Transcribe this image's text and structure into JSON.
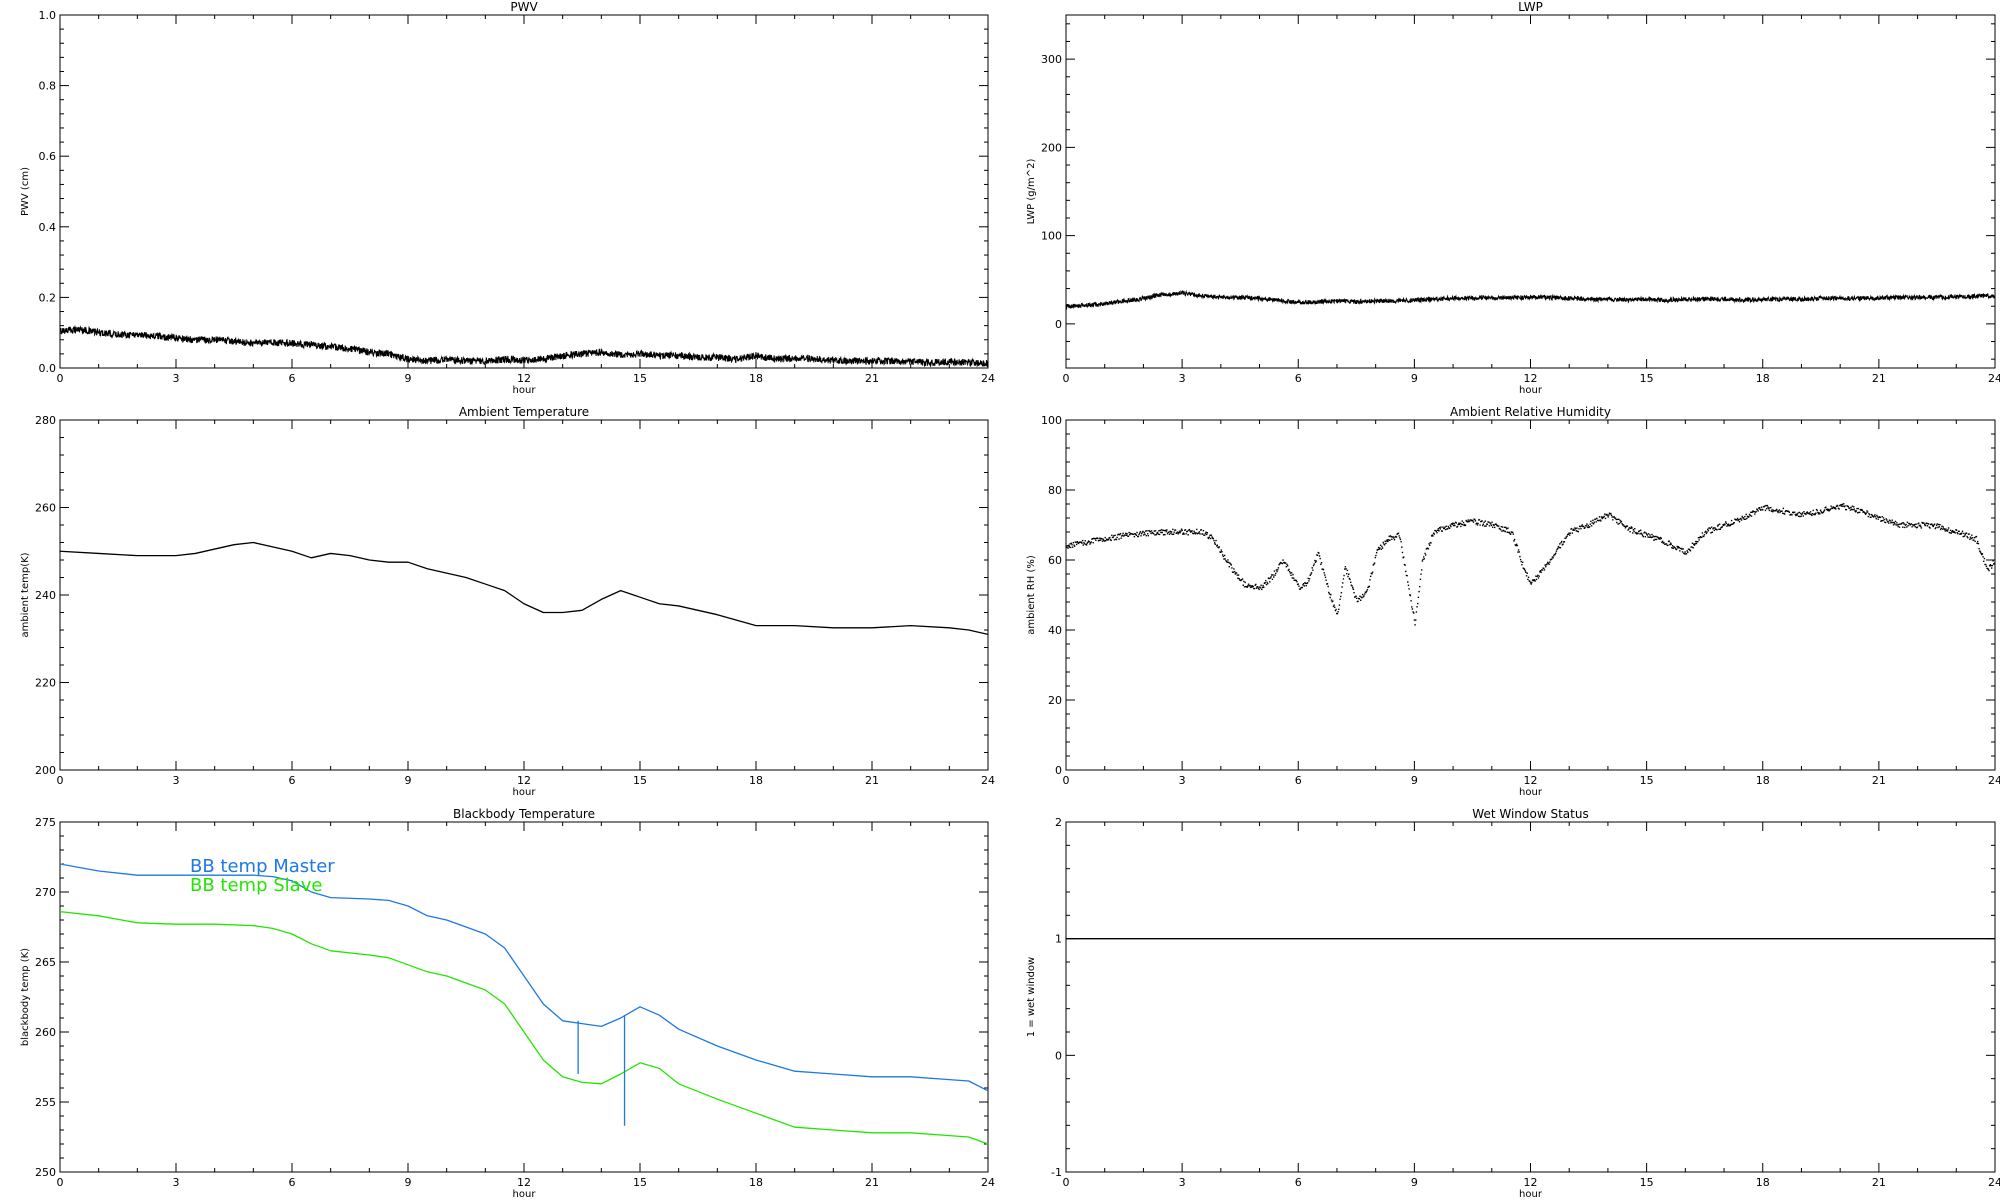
{
  "page": {
    "background": "#ffffff",
    "axis_color": "#000000"
  },
  "chart_data": [
    {
      "id": "pwv",
      "type": "line",
      "title": "PWV",
      "xlabel": "hour",
      "ylabel": "PWV (cm)",
      "xlim": [
        0,
        24
      ],
      "ylim": [
        0,
        1
      ],
      "xticks": [
        0,
        3,
        6,
        9,
        12,
        15,
        18,
        21,
        24
      ],
      "yticks": [
        0,
        0.2,
        0.4,
        0.6,
        0.8,
        1
      ],
      "ytick_labels": [
        "0.0",
        "0.2",
        "0.4",
        "0.6",
        "0.8",
        "1.0"
      ],
      "grid": false,
      "series": [
        {
          "color": "#000000",
          "style": "noisy",
          "noise": 0.01,
          "x": [
            0,
            0.5,
            1,
            1.5,
            2,
            2.5,
            3,
            3.5,
            4,
            4.5,
            5,
            5.5,
            6,
            6.5,
            7,
            7.5,
            8,
            8.5,
            9,
            9.5,
            10,
            10.5,
            11,
            11.5,
            12,
            12.5,
            13,
            13.5,
            14,
            14.5,
            15,
            15.5,
            16,
            16.5,
            17,
            17.5,
            18,
            18.5,
            19,
            19.5,
            20,
            20.5,
            21,
            21.5,
            22,
            22.5,
            23,
            23.5,
            24
          ],
          "y": [
            0.105,
            0.11,
            0.1,
            0.095,
            0.095,
            0.09,
            0.085,
            0.08,
            0.08,
            0.075,
            0.07,
            0.072,
            0.07,
            0.065,
            0.06,
            0.055,
            0.045,
            0.04,
            0.025,
            0.02,
            0.025,
            0.02,
            0.02,
            0.025,
            0.022,
            0.025,
            0.035,
            0.04,
            0.045,
            0.038,
            0.04,
            0.035,
            0.035,
            0.03,
            0.03,
            0.025,
            0.035,
            0.025,
            0.028,
            0.025,
            0.022,
            0.02,
            0.02,
            0.02,
            0.018,
            0.015,
            0.018,
            0.015,
            0.012
          ]
        }
      ]
    },
    {
      "id": "lwp",
      "type": "line",
      "title": "LWP",
      "xlabel": "hour",
      "ylabel": "LWP (g/m^2)",
      "xlim": [
        0,
        24
      ],
      "ylim": [
        -50,
        350
      ],
      "xticks": [
        0,
        3,
        6,
        9,
        12,
        15,
        18,
        21,
        24
      ],
      "yticks": [
        0,
        100,
        200,
        300
      ],
      "ytick_labels": [
        "0",
        "100",
        "200",
        "300"
      ],
      "grid": false,
      "series": [
        {
          "color": "#000000",
          "style": "noisy",
          "noise": 2.5,
          "x": [
            0,
            0.5,
            1,
            1.5,
            2,
            2.5,
            3,
            3.5,
            4,
            4.5,
            5,
            5.5,
            6,
            6.5,
            7,
            7.5,
            8,
            8.5,
            9,
            9.5,
            10,
            10.5,
            11,
            11.5,
            12,
            12.5,
            13,
            13.5,
            14,
            14.5,
            15,
            15.5,
            16,
            16.5,
            17,
            17.5,
            18,
            18.5,
            19,
            19.5,
            20,
            20.5,
            21,
            21.5,
            22,
            22.5,
            23,
            23.5,
            24
          ],
          "y": [
            20,
            21,
            23,
            26,
            29,
            33,
            35,
            32,
            30,
            30,
            29,
            27,
            24,
            25,
            26,
            25,
            26,
            26,
            27,
            28,
            29,
            29,
            30,
            30,
            30,
            30,
            29,
            28,
            28,
            27,
            28,
            27,
            28,
            28,
            28,
            27,
            28,
            28,
            28,
            29,
            29,
            29,
            29,
            30,
            30,
            30,
            31,
            31,
            32
          ]
        }
      ]
    },
    {
      "id": "ambient_temperature",
      "type": "line",
      "title": "Ambient Temperature",
      "xlabel": "hour",
      "ylabel": "ambient temp(K)",
      "xlim": [
        0,
        24
      ],
      "ylim": [
        200,
        280
      ],
      "xticks": [
        0,
        3,
        6,
        9,
        12,
        15,
        18,
        21,
        24
      ],
      "yticks": [
        200,
        220,
        240,
        260,
        280
      ],
      "ytick_labels": [
        "200",
        "220",
        "240",
        "260",
        "280"
      ],
      "grid": false,
      "series": [
        {
          "color": "#000000",
          "style": "line",
          "x": [
            0,
            1,
            2,
            3,
            3.5,
            4,
            4.5,
            5,
            5.5,
            6,
            6.5,
            7,
            7.5,
            8,
            8.5,
            9,
            9.5,
            10,
            10.5,
            11,
            11.5,
            12,
            12.5,
            13,
            13.5,
            14,
            14.5,
            15,
            15.5,
            16,
            17,
            18,
            19,
            20,
            21,
            22,
            23,
            23.5,
            24
          ],
          "y": [
            250,
            249.5,
            249,
            249,
            249.5,
            250.5,
            251.5,
            252,
            251,
            250,
            248.5,
            249.5,
            249,
            248,
            247.5,
            247.5,
            246,
            245,
            244,
            242.5,
            241,
            238,
            236,
            236,
            236.5,
            239,
            241,
            239.5,
            238,
            237.5,
            235.5,
            233,
            233,
            232.5,
            232.5,
            233,
            232.5,
            232,
            231
          ]
        }
      ]
    },
    {
      "id": "ambient_relative_humidity",
      "type": "scatter",
      "title": "Ambient Relative Humidity",
      "xlabel": "hour",
      "ylabel": "ambient RH (%)",
      "xlim": [
        0,
        24
      ],
      "ylim": [
        0,
        100
      ],
      "xticks": [
        0,
        3,
        6,
        9,
        12,
        15,
        18,
        21,
        24
      ],
      "yticks": [
        0,
        20,
        40,
        60,
        80,
        100
      ],
      "ytick_labels": [
        "0",
        "20",
        "40",
        "60",
        "80",
        "100"
      ],
      "grid": false,
      "series": [
        {
          "color": "#000000",
          "style": "dots",
          "x": [
            0,
            0.5,
            1,
            1.5,
            2,
            2.5,
            3,
            3.5,
            3.8,
            4,
            4.3,
            4.6,
            5,
            5.3,
            5.6,
            6,
            6.2,
            6.5,
            6.8,
            7,
            7.2,
            7.5,
            7.8,
            8,
            8.3,
            8.6,
            9,
            9.2,
            9.5,
            10,
            10.5,
            11,
            11.5,
            11.8,
            12,
            12.5,
            13,
            13.5,
            14,
            14.5,
            15,
            15.5,
            16,
            16.5,
            17,
            17.5,
            18,
            18.5,
            19,
            19.5,
            20,
            20.5,
            21,
            21.5,
            22,
            22.5,
            23,
            23.5,
            23.8,
            24
          ],
          "y": [
            64,
            65,
            66,
            67,
            67.5,
            68,
            68,
            68,
            66,
            62,
            57,
            53,
            52,
            55,
            60,
            52,
            53,
            62,
            50,
            44,
            58,
            48,
            52,
            62,
            66,
            67,
            42,
            60,
            68,
            70,
            71,
            70,
            68,
            58,
            53,
            60,
            68,
            70,
            73,
            69,
            67,
            65,
            62,
            68,
            70,
            72,
            75,
            74,
            73,
            74,
            75.5,
            74,
            72,
            70,
            70,
            69.5,
            68,
            66,
            57,
            60
          ]
        }
      ]
    },
    {
      "id": "blackbody_temperature",
      "type": "line",
      "title": "Blackbody Temperature",
      "xlabel": "hour",
      "ylabel": "blackbody temp (K)",
      "xlim": [
        0,
        24
      ],
      "ylim": [
        250,
        275
      ],
      "xticks": [
        0,
        3,
        6,
        9,
        12,
        15,
        18,
        21,
        24
      ],
      "yticks": [
        250,
        255,
        260,
        265,
        270,
        275
      ],
      "ytick_labels": [
        "250",
        "255",
        "260",
        "265",
        "270",
        "275"
      ],
      "grid": false,
      "legend": "top-left",
      "series": [
        {
          "name": "BB temp Master",
          "color": "#1e78e6",
          "style": "line",
          "x": [
            0,
            1,
            2,
            3,
            4,
            5,
            5.5,
            6,
            6.5,
            7,
            8,
            8.5,
            9,
            9.5,
            10,
            10.5,
            11,
            11.5,
            12,
            12.5,
            13,
            13.5,
            14,
            14.5,
            15,
            15.5,
            16,
            17,
            18,
            19,
            20,
            21,
            22,
            23,
            23.5,
            24
          ],
          "y": [
            272,
            271.5,
            271.2,
            271.2,
            271.2,
            271.2,
            271.1,
            270.8,
            270,
            269.6,
            269.5,
            269.4,
            269,
            268.3,
            268,
            267.5,
            267,
            266,
            264,
            262,
            260.8,
            260.6,
            260.4,
            261,
            261.8,
            261.2,
            260.2,
            259,
            258,
            257.2,
            257,
            256.8,
            256.8,
            256.6,
            256.5,
            255.8
          ]
        },
        {
          "name": "BB temp Slave",
          "color": "#22e600",
          "style": "line",
          "x": [
            0,
            1,
            2,
            3,
            4,
            5,
            5.5,
            6,
            6.5,
            7,
            8,
            8.5,
            9,
            9.5,
            10,
            10.5,
            11,
            11.5,
            12,
            12.5,
            13,
            13.5,
            14,
            14.5,
            15,
            15.5,
            16,
            17,
            18,
            19,
            20,
            21,
            22,
            23,
            23.5,
            24
          ],
          "y": [
            268.6,
            268.3,
            267.8,
            267.7,
            267.7,
            267.6,
            267.4,
            267,
            266.3,
            265.8,
            265.5,
            265.3,
            264.8,
            264.3,
            264,
            263.5,
            263,
            262,
            260,
            258,
            256.8,
            256.4,
            256.3,
            257,
            257.8,
            257.4,
            256.3,
            255.2,
            254.2,
            253.2,
            253,
            252.8,
            252.8,
            252.6,
            252.5,
            252
          ]
        }
      ],
      "spikes": [
        {
          "x": 13.4,
          "y_from": 257,
          "y_to": 260.8,
          "color": "#1e78e6"
        },
        {
          "x": 14.6,
          "y_from": 253.3,
          "y_to": 261.2,
          "color": "#1e78e6"
        }
      ]
    },
    {
      "id": "wet_window_status",
      "type": "line",
      "title": "Wet Window Status",
      "xlabel": "hour",
      "ylabel": "1 = wet window",
      "xlim": [
        0,
        24
      ],
      "ylim": [
        -1,
        2
      ],
      "xticks": [
        0,
        3,
        6,
        9,
        12,
        15,
        18,
        21,
        24
      ],
      "yticks": [
        -1,
        0,
        1,
        2
      ],
      "ytick_labels": [
        "-1",
        "0",
        "1",
        "2"
      ],
      "grid": false,
      "series": [
        {
          "color": "#000000",
          "style": "line",
          "x": [
            0,
            24
          ],
          "y": [
            1,
            1
          ]
        }
      ]
    }
  ]
}
